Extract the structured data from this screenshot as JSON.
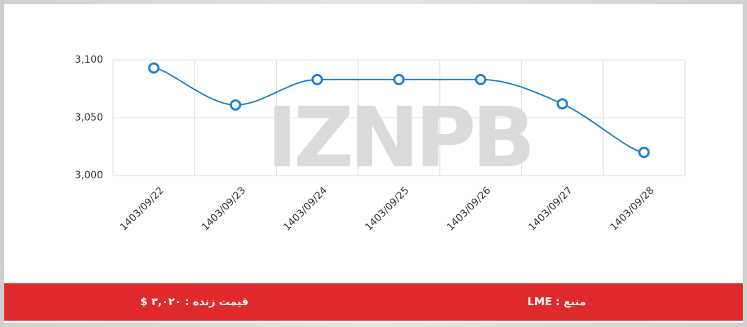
{
  "chart_data": {
    "type": "line",
    "watermark": "IZNPB",
    "categories": [
      "1403/09/22",
      "1403/09/23",
      "1403/09/24",
      "1403/09/25",
      "1403/09/26",
      "1403/09/27",
      "1403/09/28"
    ],
    "series": [
      {
        "color": "#1a7fd4",
        "values": [
          3093,
          3061,
          3083,
          3083,
          3083,
          3062,
          3020
        ]
      }
    ],
    "ylim": [
      3000,
      3100
    ],
    "yticks": [
      {
        "value": 3000,
        "label": "3,000"
      },
      {
        "value": 3050,
        "label": "3,050"
      },
      {
        "value": 3100,
        "label": "3,100"
      }
    ],
    "grid": true
  },
  "footer": {
    "live_price": "قیمت زنده : ۳,۰۲۰ $",
    "source": "منبع : LME"
  }
}
